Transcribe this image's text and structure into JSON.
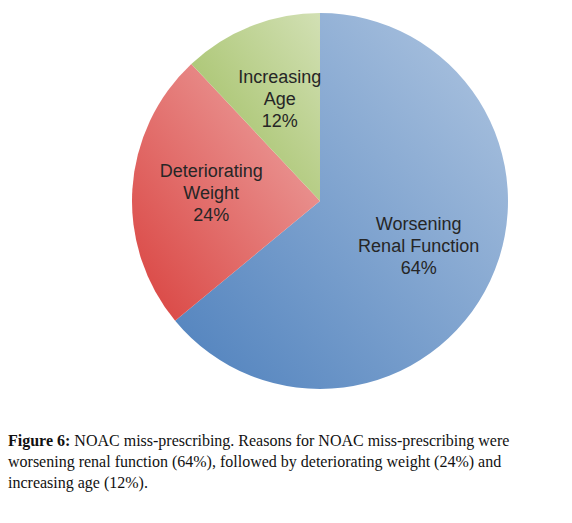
{
  "chart_data": {
    "type": "pie",
    "categories": [
      "Worsening Renal Function",
      "Deteriorating Weight",
      "Increasing Age"
    ],
    "values": [
      64,
      24,
      12
    ],
    "value_labels": [
      "64%",
      "24%",
      "12%"
    ],
    "colors": [
      "#4f81bd",
      "#d9413e",
      "#9bbb59"
    ],
    "data_labels": true
  },
  "caption": {
    "label": "Figure 6:",
    "text": "NOAC miss-prescribing. Reasons for NOAC miss-prescribing were worsening renal function (64%), followed by deteriorating weight (24%) and increasing age (12%)."
  }
}
